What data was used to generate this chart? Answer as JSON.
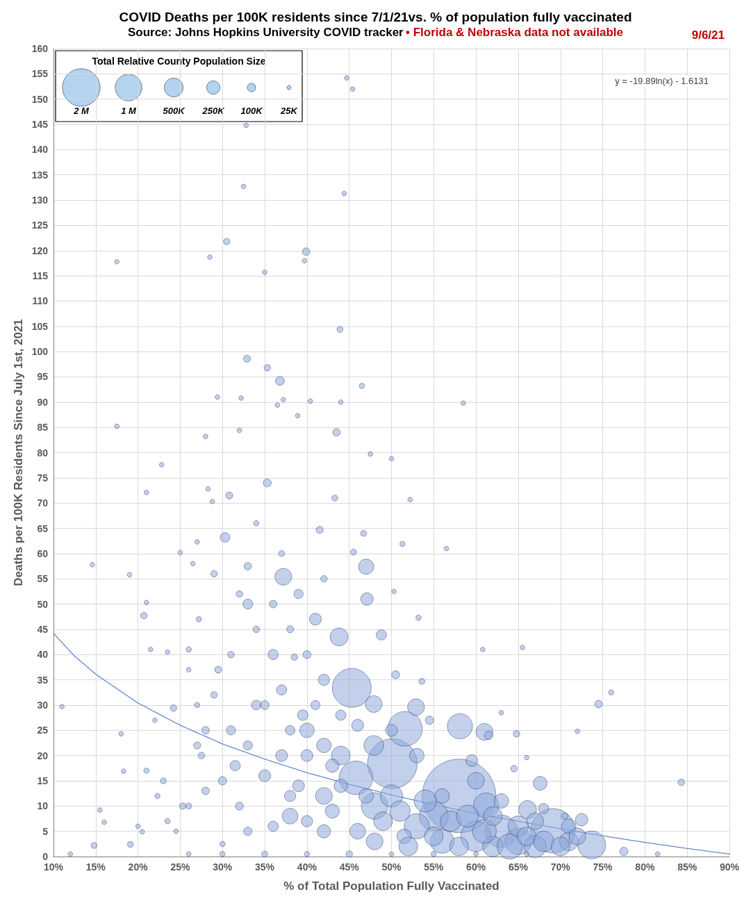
{
  "chart_data": {
    "type": "bubble",
    "title": "COVID Deaths per 100K residents since 7/1/21vs. % of population fully vaccinated",
    "subtitle": "Source: Johns Hopkins University COVID tracker",
    "annotations": [
      "• Florida & Nebraska data not available",
      "9/6/21",
      "y = -19.89ln(x) - 1.6131"
    ],
    "xlabel": "% of Total Population Fully Vaccinated",
    "ylabel": "Deaths per 100K Residents Since July 1st, 2021",
    "legend_title": "Total Relative County Population Size",
    "size_legend": [
      {
        "value": 2000000,
        "label": "2 M"
      },
      {
        "value": 1000000,
        "label": "1 M"
      },
      {
        "value": 500000,
        "label": "500K"
      },
      {
        "value": 250000,
        "label": "250K"
      },
      {
        "value": 100000,
        "label": "100K"
      },
      {
        "value": 25000,
        "label": "25K"
      }
    ],
    "grid": true,
    "xlim": [
      10,
      90
    ],
    "xticks": [
      {
        "value": 10,
        "label": "10%"
      },
      {
        "value": 15,
        "label": "15%"
      },
      {
        "value": 20,
        "label": "20%"
      },
      {
        "value": 25,
        "label": "25%"
      },
      {
        "value": 30,
        "label": "30%"
      },
      {
        "value": 35,
        "label": "35%"
      },
      {
        "value": 40,
        "label": "40%"
      },
      {
        "value": 45,
        "label": "45%"
      },
      {
        "value": 50,
        "label": "50%"
      },
      {
        "value": 55,
        "label": "55%"
      },
      {
        "value": 60,
        "label": "60%"
      },
      {
        "value": 65,
        "label": "65%"
      },
      {
        "value": 70,
        "label": "70%"
      },
      {
        "value": 75,
        "label": "75%"
      },
      {
        "value": 80,
        "label": "80%"
      },
      {
        "value": 85,
        "label": "85%"
      },
      {
        "value": 90,
        "label": "90%"
      }
    ],
    "ylim": [
      0,
      160
    ],
    "yticks": [
      0,
      5,
      10,
      15,
      20,
      25,
      30,
      35,
      40,
      45,
      50,
      55,
      60,
      65,
      70,
      75,
      80,
      85,
      90,
      95,
      100,
      105,
      110,
      115,
      120,
      125,
      130,
      135,
      140,
      145,
      150,
      155,
      160
    ],
    "series": [
      {
        "type": "line",
        "color": "#4472c4",
        "line_style": "dotted",
        "x": [
          10,
          12.5,
          15,
          20,
          25,
          30,
          35,
          40,
          45,
          50,
          55,
          60,
          65,
          70,
          75,
          80,
          85,
          90
        ],
        "values": [
          44.2,
          39.7,
          36.1,
          30.4,
          26,
          22.3,
          19.3,
          16.6,
          14.3,
          12.2,
          10.3,
          8.5,
          7,
          5.5,
          4.1,
          2.8,
          1.6,
          0.5
        ]
      },
      {
        "color": "#8faadc",
        "x": [
          58,
          50.1,
          69.1,
          45.3,
          51.6,
          45.8,
          73.7,
          58.1,
          61.2,
          43.8,
          66.1,
          52.9,
          47.9,
          61,
          47.9,
          37.2,
          47,
          47.1,
          67.6,
          72.5,
          55,
          63,
          65,
          60,
          53,
          48,
          56,
          50,
          44,
          42,
          40,
          38,
          62,
          67,
          71,
          11,
          14.8,
          15.5,
          16,
          17.5,
          17.5,
          18,
          18.3,
          14.6,
          19,
          19.1,
          20,
          20.5,
          20.7,
          21,
          21,
          21,
          21.5,
          22,
          22.3,
          22.8,
          23,
          23.5,
          23.5,
          24.2,
          24.5,
          25,
          25.3,
          26,
          26.5,
          27,
          27.2,
          27.5,
          28,
          28,
          28.3,
          28.5,
          28.8,
          29,
          29.4,
          29.5,
          30,
          30.3,
          30.5,
          30.8,
          31,
          31.5,
          32,
          32.2,
          32.5,
          32.8,
          32.9,
          33,
          33,
          33,
          34,
          34,
          35,
          35.3,
          35.3,
          36,
          36.5,
          36.8,
          37,
          37.2,
          38,
          38.5,
          38.9,
          39,
          39.5,
          39.7,
          39.9,
          40.4,
          41,
          41.5,
          42,
          42,
          43,
          43.3,
          43.5,
          43.9,
          44,
          44.4,
          44.7,
          45.4,
          45.5,
          46.5,
          46.7,
          47.5,
          48.8,
          50,
          50.3,
          50.5,
          51.3,
          51.5,
          52.2,
          53.2,
          53.6,
          54.5,
          56,
          56.5,
          58.5,
          59.5,
          60.8,
          61.5,
          63,
          64.5,
          64.8,
          65.5,
          66,
          68,
          70.5,
          72,
          74.5,
          76,
          77.5,
          81.5,
          84.3,
          26,
          30,
          35,
          40,
          45,
          50,
          55,
          60,
          66,
          12,
          26,
          28,
          30,
          32,
          33,
          35,
          35,
          36,
          37,
          38,
          39,
          40,
          40,
          41,
          42,
          43,
          44,
          44,
          46,
          46,
          47,
          48,
          49,
          50,
          51,
          52,
          53,
          54,
          55,
          57,
          58,
          59,
          60,
          61,
          62,
          63,
          64,
          65,
          66,
          67,
          68,
          70,
          71,
          72,
          34,
          36,
          38,
          40,
          31,
          29,
          27,
          32,
          37,
          42,
          27,
          26
        ],
        "values": [
          12,
          18.4,
          5.1,
          33.4,
          25.3,
          15.6,
          2.3,
          25.8,
          10.1,
          43.5,
          9.3,
          29.6,
          30.2,
          24.7,
          22,
          55.4,
          57.4,
          51,
          14.5,
          7.3,
          8,
          5,
          3,
          4,
          6,
          10,
          3,
          12,
          20,
          12,
          25,
          8,
          2,
          2,
          3,
          29.7,
          2.2,
          9.2,
          6.8,
          117.8,
          85.2,
          24.3,
          16.9,
          57.8,
          55.8,
          2.4,
          6,
          4.9,
          47.7,
          50.3,
          72.1,
          17,
          41,
          27,
          12,
          77.6,
          15,
          7,
          40.5,
          29.4,
          5,
          60.2,
          10,
          37,
          58,
          62.3,
          47,
          20,
          83.2,
          13,
          72.8,
          118.7,
          70.3,
          56,
          91,
          37,
          2.5,
          63.2,
          121.8,
          71.5,
          25,
          18,
          84.4,
          90.8,
          132.7,
          144.8,
          98.6,
          50,
          57.5,
          5,
          30,
          66,
          115.7,
          96.8,
          74,
          40,
          89.4,
          94.2,
          20,
          90.5,
          12,
          39.5,
          87.3,
          52,
          28,
          118,
          119.8,
          90.2,
          47,
          64.7,
          35,
          5,
          18,
          71,
          84,
          104.4,
          90,
          131.3,
          154.2,
          152,
          60.3,
          93.2,
          64,
          79.7,
          43.9,
          78.8,
          52.5,
          36,
          61.9,
          4,
          70.7,
          47.3,
          34.7,
          27,
          12,
          61,
          89.8,
          19,
          41,
          24,
          28.5,
          17.4,
          24.3,
          41.4,
          19.6,
          9.5,
          8,
          24.8,
          30.2,
          32.5,
          1,
          0.5,
          14.7,
          0.5,
          0.5,
          0.5,
          0.5,
          0.5,
          0.5,
          0.5,
          0.5,
          0.5,
          0.5,
          10,
          25,
          15,
          10,
          22,
          16,
          30,
          6,
          33,
          25,
          14,
          7,
          20,
          30,
          22,
          9,
          14,
          28,
          5,
          26,
          12,
          3,
          7,
          25,
          9,
          2,
          20,
          11,
          4,
          7,
          2,
          8,
          15,
          5,
          8,
          11,
          2,
          6,
          4,
          7,
          3,
          2,
          6,
          4,
          45,
          50,
          45,
          40,
          40,
          32,
          22,
          52,
          60,
          55,
          30,
          41
        ],
        "sizes": [
          7700000,
          3500000,
          2800000,
          2150000,
          1700000,
          1600000,
          1100000,
          900000,
          900000,
          460000,
          460000,
          400000,
          400000,
          400000,
          550000,
          400000,
          330000,
          220000,
          270000,
          220000,
          1200000,
          1500000,
          1000000,
          1300000,
          900000,
          1000000,
          800000,
          700000,
          500000,
          400000,
          300000,
          350000,
          600000,
          700000,
          500000,
          30000,
          50000,
          30000,
          30000,
          30000,
          30000,
          30000,
          30000,
          30000,
          30000,
          50000,
          30000,
          30000,
          60000,
          30000,
          30000,
          40000,
          30000,
          30000,
          40000,
          30000,
          50000,
          40000,
          30000,
          60000,
          30000,
          30000,
          60000,
          30000,
          30000,
          30000,
          40000,
          60000,
          30000,
          80000,
          30000,
          30000,
          30000,
          60000,
          30000,
          70000,
          40000,
          130000,
          60000,
          70000,
          120000,
          150000,
          30000,
          30000,
          30000,
          30000,
          70000,
          140000,
          80000,
          100000,
          130000,
          40000,
          30000,
          60000,
          90000,
          150000,
          30000,
          110000,
          200000,
          30000,
          180000,
          60000,
          30000,
          120000,
          160000,
          30000,
          80000,
          30000,
          200000,
          70000,
          180000,
          250000,
          250000,
          50000,
          80000,
          50000,
          30000,
          30000,
          30000,
          30000,
          50000,
          40000,
          50000,
          30000,
          150000,
          30000,
          30000,
          90000,
          40000,
          300000,
          30000,
          40000,
          50000,
          100000,
          300000,
          30000,
          30000,
          200000,
          30000,
          100000,
          30000,
          60000,
          60000,
          30000,
          30000,
          150000,
          60000,
          30000,
          80000,
          40000,
          100000,
          30000,
          60000,
          30000,
          40000,
          50000,
          40000,
          60000,
          30000,
          40000,
          30000,
          30000,
          30000,
          50000,
          80000,
          100000,
          90000,
          120000,
          200000,
          110000,
          150000,
          150000,
          130000,
          200000,
          180000,
          200000,
          120000,
          300000,
          280000,
          250000,
          150000,
          350000,
          200000,
          300000,
          400000,
          500000,
          200000,
          600000,
          500000,
          300000,
          700000,
          500000,
          600000,
          500000,
          700000,
          400000,
          800000,
          500000,
          300000,
          900000,
          600000,
          500000,
          400000,
          600000,
          500000,
          300000,
          400000,
          60000,
          80000,
          70000,
          90000,
          60000,
          60000,
          70000,
          60000,
          50000,
          60000,
          40000,
          40000
        ]
      }
    ]
  }
}
